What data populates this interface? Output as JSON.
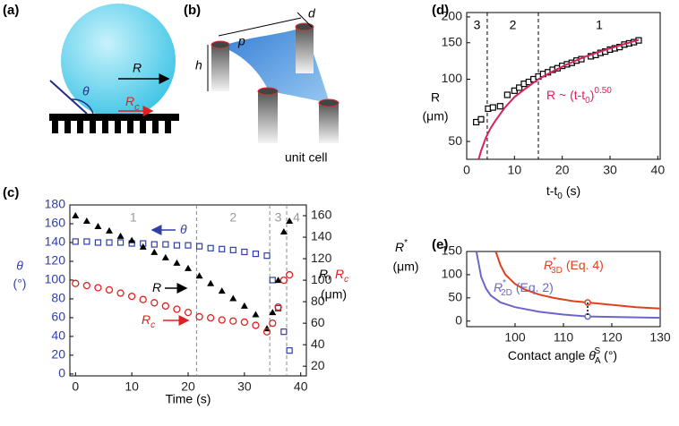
{
  "panels": [
    "(a)",
    "(b)",
    "(c)",
    "(d)",
    "(e)"
  ],
  "diagram_a": {
    "radius": "R",
    "angle": "θ",
    "contact_radius": "R",
    "contact_radius_sub": "c"
  },
  "diagram_b": {
    "pitch": "p",
    "diameter": "d",
    "height": "h",
    "caption": "unit cell"
  },
  "chart_data": [
    {
      "type": "scatter",
      "xlabel": "Time (s)",
      "ylabel": "θ",
      "yunit": "(°)",
      "ycolor": "#2f3fa8",
      "y2label": "R,",
      "y2label_b": "R",
      "y2label_b_sub": "c",
      "y2unit": "(μm)",
      "xlim": [
        -1,
        41
      ],
      "xticks": [
        0,
        10,
        20,
        30,
        40
      ],
      "ylim": [
        -2,
        180
      ],
      "yticks": [
        0,
        20,
        40,
        60,
        80,
        100,
        120,
        140,
        160,
        180
      ],
      "y2lim": [
        11,
        170
      ],
      "y2ticks": [
        20,
        40,
        60,
        80,
        100,
        120,
        140,
        160
      ],
      "dividers": [
        21.5,
        34.5,
        37.5
      ],
      "divider_color": "#8a8a8a",
      "region_labels": [
        "1",
        "2",
        "3",
        "4"
      ],
      "x": [
        0,
        2,
        4,
        6,
        8,
        10,
        12,
        14,
        16,
        18,
        20,
        22,
        24,
        26,
        28,
        30,
        32,
        34,
        35,
        36,
        37,
        38
      ],
      "series": [
        {
          "name": "θ",
          "color": "#2f3fa8",
          "marker": "square",
          "values": [
            141,
            141,
            140,
            140,
            140,
            139,
            139,
            138,
            138,
            137,
            137,
            136,
            134,
            133,
            132,
            130,
            128,
            126,
            100,
            70,
            45,
            25
          ]
        },
        {
          "name": "R",
          "color": "#000000",
          "marker": "triangle",
          "axis": "y2",
          "values": [
            160,
            155,
            150,
            146,
            141,
            137,
            131,
            126,
            121,
            116,
            111,
            104,
            97,
            90,
            83,
            76,
            68,
            55,
            70,
            100,
            145,
            155
          ]
        },
        {
          "name": "R",
          "name_sub": "c",
          "color": "#e02020",
          "marker": "circle",
          "axis": "y2",
          "values": [
            97,
            95,
            93,
            91,
            88,
            85,
            82,
            79,
            76,
            73,
            70,
            66,
            65,
            63,
            62,
            61,
            58,
            52,
            60,
            75,
            100,
            105
          ]
        }
      ]
    },
    {
      "type": "scatter",
      "xlabel": "t-t",
      "xlabel_sub": "0",
      "xunit": "(s)",
      "ylabel": "R",
      "yunit": "(μm)",
      "log_y": true,
      "xlim": [
        0,
        40.5
      ],
      "xticks": [
        0,
        10,
        20,
        30,
        40
      ],
      "ylim": [
        41,
        210
      ],
      "yticks": [
        50,
        100,
        150,
        200
      ],
      "dividers": [
        4.3,
        15
      ],
      "divider_color": "#000000",
      "region_labels": [
        "3",
        "2",
        "1"
      ],
      "fit_label": "R ~ (t-t",
      "fit_label_sub": "0",
      "fit_label_end": ")",
      "fit_label_sup": "0.50",
      "series": [
        {
          "color": "#000000",
          "marker": "square",
          "x": [
            2,
            3,
            4.5,
            5.5,
            7,
            8.5,
            10,
            11,
            12,
            13,
            14,
            15,
            16,
            17,
            18,
            19,
            20,
            21,
            22,
            23,
            24,
            26,
            27,
            28,
            29,
            30,
            31,
            32,
            33,
            34,
            35,
            36
          ],
          "values": [
            62,
            64,
            72,
            73,
            74,
            84,
            88,
            91,
            95,
            97,
            100,
            103,
            106,
            108,
            111,
            113,
            116,
            118,
            120,
            123,
            125,
            129,
            131,
            134,
            136,
            139,
            141,
            143,
            147,
            149,
            151,
            154
          ]
        },
        {
          "color": "#d6245a",
          "style": "line",
          "x": [
            2.5,
            3,
            4,
            5,
            6,
            8,
            10,
            12,
            15,
            18,
            21,
            25,
            30,
            36
          ],
          "values": [
            41,
            45,
            52,
            58,
            63,
            73,
            82,
            89,
            100,
            109,
            118,
            129,
            141,
            155
          ]
        }
      ]
    },
    {
      "type": "line",
      "xlabel": "Contact angle ",
      "xlabel_sym": "θ",
      "xlabel_sub": "A",
      "xlabel_sup": "S",
      "xunit": "(°)",
      "ylabel": "R",
      "ylabel_sup": "*",
      "yunit": "(μm)",
      "xlim": [
        90,
        130
      ],
      "xticks": [
        100,
        110,
        120,
        130
      ],
      "ylim": [
        -12,
        150
      ],
      "yticks": [
        0,
        50,
        100,
        150
      ],
      "series": [
        {
          "name": "R",
          "name_sup": "*",
          "name_sub": "3D",
          "name_note": "(Eq. 4)",
          "color": "#e0401e",
          "style": "line",
          "x": [
            96,
            97,
            98,
            100,
            102,
            105,
            108,
            112,
            115,
            120,
            125,
            130
          ],
          "values": [
            150,
            120,
            100,
            80,
            68,
            57,
            50,
            43,
            40,
            35,
            30,
            27
          ]
        },
        {
          "name": "R",
          "name_sup": "*",
          "name_sub": "2D",
          "name_note": "(Eq. 2)",
          "color": "#6b66c8",
          "style": "line",
          "x": [
            92,
            93,
            94,
            95,
            97,
            100,
            105,
            110,
            115,
            120,
            130
          ],
          "values": [
            150,
            95,
            70,
            55,
            40,
            30,
            20,
            14,
            10,
            9,
            7
          ]
        }
      ],
      "points": [
        {
          "x": 115,
          "y": 40,
          "color": "#e0401e"
        },
        {
          "x": 115,
          "y": 10,
          "color": "#6b66c8"
        }
      ]
    }
  ]
}
